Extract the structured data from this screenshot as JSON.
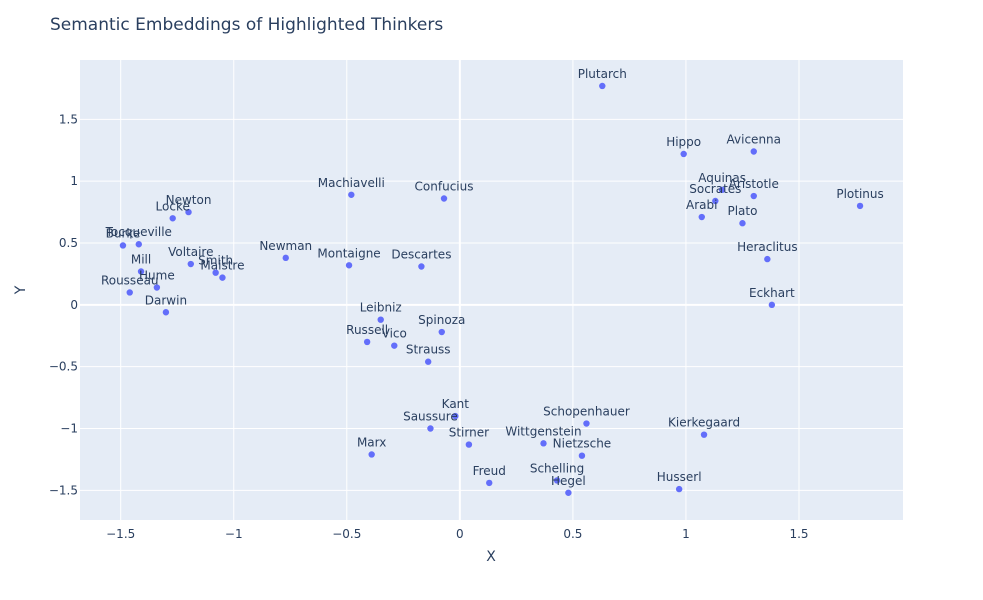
{
  "chart_data": {
    "type": "scatter",
    "title": "Semantic Embeddings of Highlighted Thinkers",
    "xlabel": "X",
    "ylabel": "Y",
    "xlim": [
      -1.68,
      1.96
    ],
    "ylim": [
      -1.74,
      1.98
    ],
    "xticks": [
      -1.5,
      -1,
      -0.5,
      0,
      0.5,
      1,
      1.5
    ],
    "xtick_labels": [
      "−1.5",
      "−1",
      "−0.5",
      "0",
      "0.5",
      "1",
      "1.5"
    ],
    "yticks": [
      -1.5,
      -1,
      -0.5,
      0,
      0.5,
      1,
      1.5
    ],
    "ytick_labels": [
      "−1.5",
      "−1",
      "−0.5",
      "0",
      "0.5",
      "1",
      "1.5"
    ],
    "grid": true,
    "marker_color": "#636efa",
    "background_color": "#e5ecf6",
    "points": [
      {
        "label": "Plutarch",
        "x": 0.63,
        "y": 1.77
      },
      {
        "label": "Hippo",
        "x": 0.99,
        "y": 1.22
      },
      {
        "label": "Avicenna",
        "x": 1.3,
        "y": 1.24
      },
      {
        "label": "Aquinas",
        "x": 1.16,
        "y": 0.93
      },
      {
        "label": "Aristotle",
        "x": 1.3,
        "y": 0.88
      },
      {
        "label": "Socrates",
        "x": 1.13,
        "y": 0.84
      },
      {
        "label": "Arabi",
        "x": 1.07,
        "y": 0.71
      },
      {
        "label": "Plato",
        "x": 1.25,
        "y": 0.66
      },
      {
        "label": "Plotinus",
        "x": 1.77,
        "y": 0.8
      },
      {
        "label": "Heraclitus",
        "x": 1.36,
        "y": 0.37
      },
      {
        "label": "Eckhart",
        "x": 1.38,
        "y": 0.0
      },
      {
        "label": "Machiavelli",
        "x": -0.48,
        "y": 0.89
      },
      {
        "label": "Confucius",
        "x": -0.07,
        "y": 0.86
      },
      {
        "label": "Newman",
        "x": -0.77,
        "y": 0.38
      },
      {
        "label": "Montaigne",
        "x": -0.49,
        "y": 0.32
      },
      {
        "label": "Descartes",
        "x": -0.17,
        "y": 0.31
      },
      {
        "label": "Newton",
        "x": -1.2,
        "y": 0.75
      },
      {
        "label": "Locke",
        "x": -1.27,
        "y": 0.7
      },
      {
        "label": "Burke",
        "x": -1.49,
        "y": 0.48
      },
      {
        "label": "Tocqueville",
        "x": -1.42,
        "y": 0.49
      },
      {
        "label": "Voltaire",
        "x": -1.19,
        "y": 0.33
      },
      {
        "label": "Smith",
        "x": -1.08,
        "y": 0.26
      },
      {
        "label": "Maistre",
        "x": -1.05,
        "y": 0.22
      },
      {
        "label": "Mill",
        "x": -1.41,
        "y": 0.27
      },
      {
        "label": "Hume",
        "x": -1.34,
        "y": 0.14
      },
      {
        "label": "Rousseau",
        "x": -1.46,
        "y": 0.1
      },
      {
        "label": "Darwin",
        "x": -1.3,
        "y": -0.06
      },
      {
        "label": "Leibniz",
        "x": -0.35,
        "y": -0.12
      },
      {
        "label": "Spinoza",
        "x": -0.08,
        "y": -0.22
      },
      {
        "label": "Russell",
        "x": -0.41,
        "y": -0.3
      },
      {
        "label": "Vico",
        "x": -0.29,
        "y": -0.33
      },
      {
        "label": "Strauss",
        "x": -0.14,
        "y": -0.46
      },
      {
        "label": "Kant",
        "x": -0.02,
        "y": -0.9
      },
      {
        "label": "Saussure",
        "x": -0.13,
        "y": -1.0
      },
      {
        "label": "Marx",
        "x": -0.39,
        "y": -1.21
      },
      {
        "label": "Stirner",
        "x": 0.04,
        "y": -1.13
      },
      {
        "label": "Schopenhauer",
        "x": 0.56,
        "y": -0.96
      },
      {
        "label": "Wittgenstein",
        "x": 0.37,
        "y": -1.12
      },
      {
        "label": "Nietzsche",
        "x": 0.54,
        "y": -1.22
      },
      {
        "label": "Kierkegaard",
        "x": 1.08,
        "y": -1.05
      },
      {
        "label": "Freud",
        "x": 0.13,
        "y": -1.44
      },
      {
        "label": "Schelling",
        "x": 0.43,
        "y": -1.42
      },
      {
        "label": "Hegel",
        "x": 0.48,
        "y": -1.52
      },
      {
        "label": "Husserl",
        "x": 0.97,
        "y": -1.49
      }
    ]
  }
}
